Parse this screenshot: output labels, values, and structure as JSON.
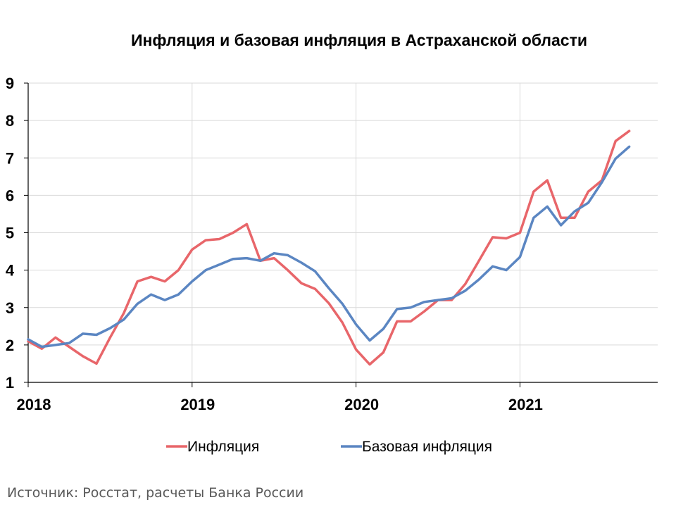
{
  "chart_data": {
    "type": "line",
    "title": "Инфляция и базовая инфляция в Астраханской области",
    "xlabel": "",
    "ylabel": "",
    "x_tick_labels": [
      "2018",
      "2019",
      "2020",
      "2021"
    ],
    "y_tick_labels": [
      "1",
      "2",
      "3",
      "4",
      "5",
      "6",
      "7",
      "8",
      "9"
    ],
    "ylim": [
      1,
      9
    ],
    "grid": true,
    "legend_position": "bottom",
    "x": [
      "2018-01",
      "2018-02",
      "2018-03",
      "2018-04",
      "2018-05",
      "2018-06",
      "2018-07",
      "2018-08",
      "2018-09",
      "2018-10",
      "2018-11",
      "2018-12",
      "2019-01",
      "2019-02",
      "2019-03",
      "2019-04",
      "2019-05",
      "2019-06",
      "2019-07",
      "2019-08",
      "2019-09",
      "2019-10",
      "2019-11",
      "2019-12",
      "2020-01",
      "2020-02",
      "2020-03",
      "2020-04",
      "2020-05",
      "2020-06",
      "2020-07",
      "2020-08",
      "2020-09",
      "2020-10",
      "2020-11",
      "2020-12",
      "2021-01",
      "2021-02",
      "2021-03",
      "2021-04",
      "2021-05",
      "2021-06",
      "2021-07",
      "2021-08",
      "2021-09"
    ],
    "series": [
      {
        "name": "Инфляция",
        "color": "#e8666a",
        "values": [
          2.1,
          1.9,
          2.2,
          1.95,
          1.7,
          1.5,
          2.2,
          2.85,
          3.7,
          3.82,
          3.7,
          4.0,
          4.55,
          4.8,
          4.83,
          5.0,
          5.23,
          4.25,
          4.32,
          4.0,
          3.65,
          3.5,
          3.12,
          2.6,
          1.88,
          1.48,
          1.8,
          2.63,
          2.63,
          2.9,
          3.2,
          3.2,
          3.63,
          4.25,
          4.88,
          4.85,
          5.0,
          6.1,
          6.4,
          5.4,
          5.4,
          6.1,
          6.4,
          7.45,
          7.72
        ]
      },
      {
        "name": "Базовая инфляция",
        "color": "#5b86c2",
        "values": [
          2.15,
          1.95,
          2.0,
          2.05,
          2.3,
          2.27,
          2.45,
          2.68,
          3.1,
          3.35,
          3.2,
          3.35,
          3.7,
          4.0,
          4.15,
          4.3,
          4.32,
          4.25,
          4.45,
          4.4,
          4.2,
          3.97,
          3.52,
          3.1,
          2.55,
          2.12,
          2.43,
          2.96,
          3.0,
          3.15,
          3.2,
          3.25,
          3.45,
          3.75,
          4.1,
          4.0,
          4.35,
          5.4,
          5.7,
          5.2,
          5.57,
          5.8,
          6.35,
          6.98,
          7.3
        ]
      }
    ]
  },
  "source_note": "Источник: Росстат, расчеты Банка России"
}
